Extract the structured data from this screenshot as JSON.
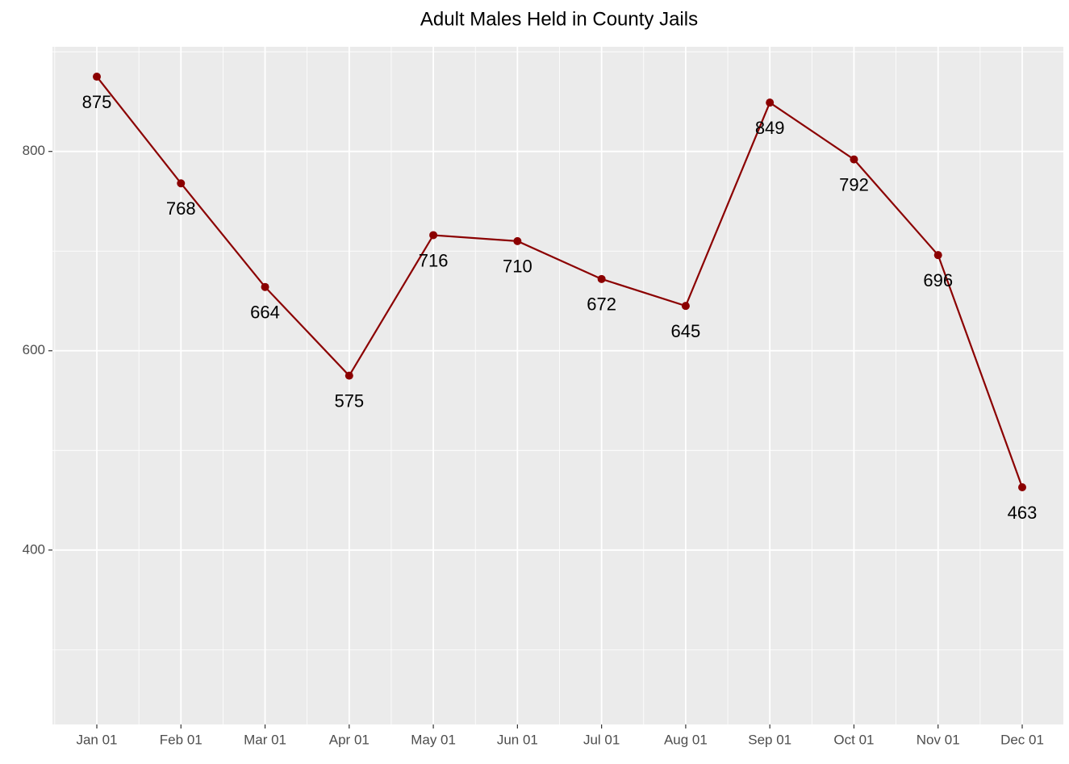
{
  "chart_data": {
    "type": "line",
    "title": "Adult Males Held in County Jails",
    "categories": [
      "Jan 01",
      "Feb 01",
      "Mar 01",
      "Apr 01",
      "May 01",
      "Jun 01",
      "Jul 01",
      "Aug 01",
      "Sep 01",
      "Oct 01",
      "Nov 01",
      "Dec 01"
    ],
    "series": [
      {
        "name": "Adult Males",
        "color": "#8b0000",
        "values": [
          875,
          768,
          664,
          575,
          716,
          710,
          672,
          645,
          849,
          792,
          696,
          463
        ]
      }
    ],
    "ylim": [
      225,
      905
    ],
    "yticks": [
      400,
      600,
      800
    ],
    "grid": true
  }
}
